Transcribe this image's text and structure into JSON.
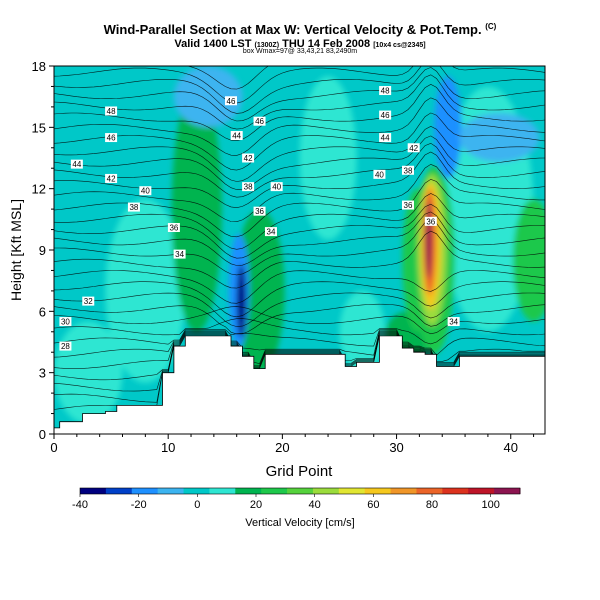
{
  "header": {
    "title_main": "Wind-Parallel Section at Max W: Vertical Velocity & Pot.Temp.",
    "title_tag": "(C)",
    "subtitle_main": "Valid 1400 LST",
    "subtitle_utc": "(1300Z)",
    "subtitle_date": "THU 14 Feb 2008",
    "subtitle_cs": "[10x4 cs@2345]",
    "subtitle_info": "box Wmax=97@ 33,43,21 83,2490m"
  },
  "chart_data": {
    "type": "heatmap",
    "xlabel": "Grid Point",
    "ylabel": "Height [Kft MSL]",
    "xlim": [
      0,
      43
    ],
    "ylim": [
      0,
      18
    ],
    "x_ticks": [
      0,
      10,
      20,
      30,
      40
    ],
    "y_ticks": [
      0,
      3,
      6,
      9,
      12,
      15,
      18
    ],
    "colorbar": {
      "label": "Vertical Velocity [cm/s]",
      "range": [
        -40,
        110
      ],
      "tick_values": [
        -40,
        -20,
        0,
        20,
        40,
        60,
        80,
        100
      ],
      "tick_labels": [
        "-40",
        "-20",
        "0",
        "20",
        "40",
        "60",
        "80",
        "100"
      ],
      "colors": [
        "#00007f",
        "#0040c8",
        "#1e90ff",
        "#3cb4f0",
        "#00c8c8",
        "#2ee6d2",
        "#00b450",
        "#1ec84b",
        "#55d23c",
        "#9bdc3c",
        "#e1e632",
        "#f5c81e",
        "#f09628",
        "#eb6428",
        "#dc321e",
        "#be1428",
        "#8c1450"
      ]
    },
    "theta_contour_labels": [
      {
        "label": "46",
        "x": 15.5,
        "y": 16.3
      },
      {
        "label": "46",
        "x": 18.0,
        "y": 15.3
      },
      {
        "label": "44",
        "x": 16.0,
        "y": 14.6
      },
      {
        "label": "42",
        "x": 17.0,
        "y": 13.5
      },
      {
        "label": "38",
        "x": 17.0,
        "y": 12.1
      },
      {
        "label": "40",
        "x": 19.5,
        "y": 12.1
      },
      {
        "label": "36",
        "x": 18.0,
        "y": 10.9
      },
      {
        "label": "34",
        "x": 19.0,
        "y": 9.9
      },
      {
        "label": "48",
        "x": 5.0,
        "y": 15.8
      },
      {
        "label": "46",
        "x": 5.0,
        "y": 14.5
      },
      {
        "label": "44",
        "x": 2.0,
        "y": 13.2
      },
      {
        "label": "42",
        "x": 5.0,
        "y": 12.5
      },
      {
        "label": "40",
        "x": 8.0,
        "y": 11.9
      },
      {
        "label": "38",
        "x": 7.0,
        "y": 11.1
      },
      {
        "label": "36",
        "x": 10.5,
        "y": 10.1
      },
      {
        "label": "34",
        "x": 11.0,
        "y": 8.8
      },
      {
        "label": "32",
        "x": 3.0,
        "y": 6.5
      },
      {
        "label": "30",
        "x": 1.0,
        "y": 5.5
      },
      {
        "label": "28",
        "x": 1.0,
        "y": 4.3
      },
      {
        "label": "48",
        "x": 29.0,
        "y": 16.8
      },
      {
        "label": "46",
        "x": 29.0,
        "y": 15.6
      },
      {
        "label": "44",
        "x": 29.0,
        "y": 14.5
      },
      {
        "label": "42",
        "x": 31.5,
        "y": 14.0
      },
      {
        "label": "40",
        "x": 28.5,
        "y": 12.7
      },
      {
        "label": "38",
        "x": 31.0,
        "y": 12.9
      },
      {
        "label": "36",
        "x": 31.0,
        "y": 11.2
      },
      {
        "label": "36",
        "x": 33.0,
        "y": 10.4
      },
      {
        "label": "34",
        "x": 35.0,
        "y": 5.5
      }
    ],
    "terrain_heights": [
      0.3,
      0.6,
      0.6,
      1.0,
      1.0,
      1.1,
      1.4,
      1.4,
      1.4,
      1.4,
      3.0,
      4.3,
      4.8,
      4.8,
      4.8,
      4.8,
      4.3,
      3.8,
      3.2,
      3.9,
      3.9,
      3.9,
      3.9,
      3.9,
      3.9,
      3.9,
      3.3,
      3.5,
      3.5,
      4.8,
      4.8,
      4.2,
      4.0,
      3.9,
      3.3,
      3.3,
      3.8,
      3.8,
      3.8,
      3.8,
      3.8,
      3.8,
      3.8,
      3.8
    ]
  }
}
